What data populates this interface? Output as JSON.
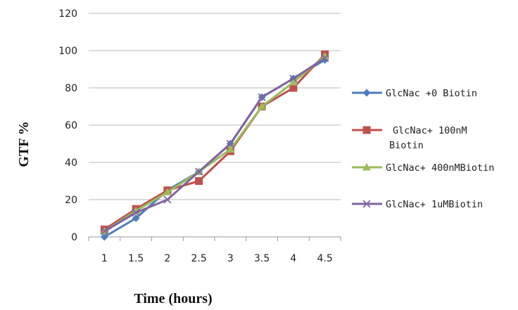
{
  "chart_data": {
    "type": "line",
    "xlabel": "Time (hours)",
    "ylabel": "GTF %",
    "categories": [
      "1",
      "1.5",
      "2",
      "2.5",
      "3",
      "3.5",
      "4",
      "4.5"
    ],
    "ylim": [
      0,
      120
    ],
    "yticks": [
      0,
      20,
      40,
      60,
      80,
      100,
      120
    ],
    "grid": "horizontal",
    "legend_position": "right",
    "series": [
      {
        "name": "GlcNac +0 Biotin",
        "values": [
          0,
          10,
          25,
          35,
          50,
          75,
          85,
          95
        ],
        "color": "#4A7EBB",
        "marker": "diamond"
      },
      {
        "name_lines": [
          "GlcNac+ 100nM",
          "Biotin"
        ],
        "name": "GlcNac+ 100nM Biotin",
        "values": [
          4,
          15,
          25,
          30,
          46,
          70,
          80,
          98
        ],
        "color": "#C0504D",
        "marker": "square"
      },
      {
        "name": "GlcNac+ 400nMBiotin",
        "values": [
          3,
          14,
          24,
          35,
          47,
          70,
          83,
          97
        ],
        "color": "#9BBB59",
        "marker": "triangle"
      },
      {
        "name": "GlcNac+ 1uMBiotin",
        "values": [
          3,
          13,
          20,
          35,
          50,
          75,
          85,
          96
        ],
        "color": "#8064A2",
        "marker": "x"
      }
    ]
  }
}
